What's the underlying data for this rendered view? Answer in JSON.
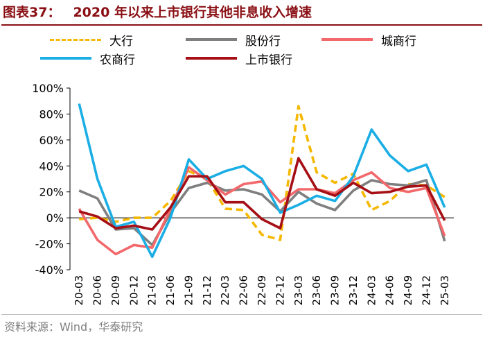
{
  "title": {
    "figure_label": "图表37：",
    "text": "2020 年以来上市银行其他非息收入增速"
  },
  "source": "资料来源：Wind，华泰研究",
  "colors": {
    "title": "#8a0f14",
    "dahang": "#f5b800",
    "gufen": "#7f7f7f",
    "chengshang": "#f2686b",
    "nongshang": "#1aaee5",
    "shangshi": "#a50f15"
  },
  "chart_data": {
    "type": "line",
    "title": "2020 年以来上市银行其他非息收入增速",
    "xlabel": "",
    "ylabel": "",
    "ylim": [
      -40,
      100
    ],
    "yticks": [
      -40,
      -20,
      0,
      20,
      40,
      60,
      80,
      100
    ],
    "ytick_labels": [
      "-40%",
      "-20%",
      "0%",
      "20%",
      "40%",
      "60%",
      "80%",
      "100%"
    ],
    "categories": [
      "20-03",
      "20-06",
      "20-09",
      "20-12",
      "21-03",
      "21-06",
      "21-09",
      "21-12",
      "22-03",
      "22-06",
      "22-09",
      "22-12",
      "23-03",
      "23-06",
      "23-09",
      "23-12",
      "24-03",
      "24-06",
      "24-09",
      "24-12",
      "25-03"
    ],
    "legend_position": "top",
    "series": [
      {
        "name": "大行",
        "key": "dahang",
        "style": "dashed",
        "values": [
          -1,
          0,
          -3,
          0,
          0,
          13,
          36,
          30,
          7,
          6,
          -13,
          -17,
          86,
          35,
          27,
          34,
          6,
          13,
          26,
          25,
          16
        ]
      },
      {
        "name": "股份行",
        "key": "gufen",
        "style": "solid",
        "values": [
          21,
          15,
          -9,
          -8,
          -21,
          4,
          23,
          27,
          21,
          22,
          18,
          5,
          20,
          11,
          6,
          21,
          29,
          26,
          25,
          29,
          -18
        ]
      },
      {
        "name": "城商行",
        "key": "chengshang",
        "style": "solid",
        "values": [
          7,
          -17,
          -28,
          -21,
          -23,
          7,
          39,
          29,
          18,
          26,
          28,
          12,
          22,
          22,
          19,
          29,
          35,
          23,
          20,
          23,
          -14
        ]
      },
      {
        "name": "农商行",
        "key": "nongshang",
        "style": "solid",
        "values": [
          88,
          30,
          -7,
          -3,
          -30,
          0,
          45,
          30,
          36,
          40,
          30,
          4,
          10,
          17,
          13,
          32,
          68,
          48,
          36,
          41,
          8
        ]
      },
      {
        "name": "上市银行",
        "key": "shangshi",
        "style": "solid",
        "values": [
          5,
          1,
          -8,
          -6,
          -9,
          8,
          32,
          32,
          12,
          12,
          -1,
          -8,
          46,
          22,
          17,
          27,
          19,
          20,
          24,
          25,
          -2
        ]
      }
    ]
  }
}
